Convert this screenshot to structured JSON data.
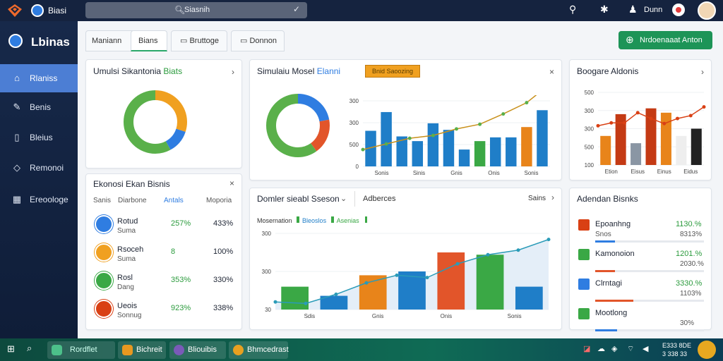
{
  "topbar": {
    "brand": "Biasi",
    "search": "Siasnih",
    "user": "Dunn"
  },
  "sidebar": {
    "title": "Lbinas",
    "items": [
      {
        "label": "Rlaniss"
      },
      {
        "label": "Benis"
      },
      {
        "label": "Bleius"
      },
      {
        "label": "Remonoi"
      },
      {
        "label": "Ereoologe"
      }
    ]
  },
  "tabs": [
    "Maniann",
    "Bians",
    "Bruttoge",
    "Donnon"
  ],
  "action_label": "Nrdoenaaat Anton",
  "card1": {
    "title": "Umulsi Sikantonia",
    "title_accent": "Biats",
    "donut": {
      "segments": [
        {
          "label": "a",
          "value": 0.3,
          "color": "#f0a020"
        },
        {
          "label": "b",
          "value": 0.12,
          "color": "#2f7de1"
        },
        {
          "label": "c",
          "value": 0.58,
          "color": "#5ab04a"
        }
      ]
    }
  },
  "card2": {
    "title": "Ekonosi Ekan Bisnis",
    "headers": [
      "Sanis",
      "Diarbone",
      "Antals",
      "Moporia"
    ],
    "rows": [
      {
        "name": "Rotud",
        "sub": "Suma",
        "v1": "257%",
        "v2": "433%",
        "color": "#2f7de1"
      },
      {
        "name": "Rsoceh",
        "sub": "Suma",
        "v1": "8",
        "v2": "100%",
        "color": "#f0a020"
      },
      {
        "name": "Rosl",
        "sub": "Dang",
        "v1": "353%",
        "v2": "330%",
        "color": "#3aa845"
      },
      {
        "name": "Ueois",
        "sub": "Sonnug",
        "v1": "923%",
        "v2": "338%",
        "color": "#d94014"
      }
    ]
  },
  "card3": {
    "title": "Simulaiu Mosel",
    "title_accent": "Elanni",
    "badge": "Bnid Saoozing",
    "donut": {
      "segments": [
        {
          "label": "a",
          "value": 0.22,
          "color": "#2f7de1"
        },
        {
          "label": "b",
          "value": 0.18,
          "color": "#e2552a"
        },
        {
          "label": "c",
          "value": 0.6,
          "color": "#5ab04a"
        }
      ]
    },
    "chart_data": {
      "type": "bar",
      "ylabels": [
        "300",
        "300",
        "500",
        "0"
      ],
      "xlabels": [
        "Sonis",
        "Sinis",
        "Gnis",
        "Onis",
        "Sonis"
      ],
      "values": [
        38,
        58,
        32,
        27,
        46,
        39,
        18,
        27,
        31,
        31,
        42,
        60
      ],
      "colors": [
        "#1f7ec8",
        "#1f7ec8",
        "#1f7ec8",
        "#1f7ec8",
        "#1f7ec8",
        "#1f7ec8",
        "#1f7ec8",
        "#3aa845",
        "#1f7ec8",
        "#1f7ec8",
        "#e8841a",
        "#1f7ec8"
      ],
      "line": [
        18,
        24,
        30,
        33,
        40,
        45,
        56,
        68,
        88
      ]
    }
  },
  "card4": {
    "title": "Boogare Aldonis",
    "chart_data": {
      "type": "bar",
      "ylabels": [
        "500",
        "300",
        "300",
        "500",
        "100"
      ],
      "xlabels": [
        "Etion",
        "Eisus",
        "Einus",
        "Eidus"
      ],
      "values": [
        40,
        70,
        30,
        78,
        72,
        40,
        50
      ],
      "colors": [
        "#e8841a",
        "#c43a14",
        "#8a96a4",
        "#c43a14",
        "#e8841a",
        "#eee",
        "#222"
      ],
      "line": [
        54,
        58,
        58,
        72,
        64,
        57,
        64,
        68,
        80
      ]
    }
  },
  "card5": {
    "title": "Domler sieabl Sseson",
    "subtitle": "Adberces",
    "link": "Sains",
    "legend": [
      {
        "label": "Mosernation",
        "color": "none"
      },
      {
        "label": "Bleoslos",
        "color": "#1f7ec8"
      },
      {
        "label": "Asenias",
        "color": "#3aa845"
      }
    ],
    "chart_data": {
      "type": "bar",
      "ylabels": [
        "300",
        "300",
        "30"
      ],
      "xlabels": [
        "Sdis",
        "Gnis",
        "Onis",
        "Sonis"
      ],
      "values": [
        30,
        18,
        45,
        50,
        75,
        72,
        30
      ],
      "colors": [
        "#3aa845",
        "#1f7ec8",
        "#e8841a",
        "#1f7ec8",
        "#e2552a",
        "#3aa845",
        "#1f7ec8"
      ],
      "line": [
        10,
        8,
        20,
        35,
        45,
        42,
        60,
        72,
        78,
        92
      ]
    }
  },
  "card6": {
    "title": "Adendan Bisnks",
    "rows": [
      {
        "name": "Epoanhng",
        "sub": "Snos",
        "v1": "1130.%",
        "v2": "8313%",
        "icon_color": "#d94014",
        "bar_color": "#2f7de1",
        "bar": 0.18
      },
      {
        "name": "Kamonoion",
        "sub": "",
        "v1": "1201.%",
        "v2": "2030.%",
        "icon_color": "#3aa845",
        "bar_color": "#e2552a",
        "bar": 0.18
      },
      {
        "name": "Clrntagi",
        "sub": "",
        "v1": "3330.%",
        "v2": "1103%",
        "icon_color": "#2f7de1",
        "bar_color": "#e2552a",
        "bar": 0.35
      },
      {
        "name": "Mootlong",
        "sub": "",
        "v1": "",
        "v2": "30%",
        "icon_color": "#3aa845",
        "bar_color": "#2f7de1",
        "bar": 0.2
      }
    ]
  },
  "taskbar": {
    "apps": [
      {
        "label": "Rordflet",
        "color": "#f0c040"
      },
      {
        "label": "Bichreit",
        "color": "#e89820"
      },
      {
        "label": "Bliouibis",
        "color": "#7a5ab8"
      },
      {
        "label": "Bhmcedrast",
        "color": "#e8a020"
      }
    ],
    "time": "E333 8DE",
    "date": "3 338 33"
  }
}
